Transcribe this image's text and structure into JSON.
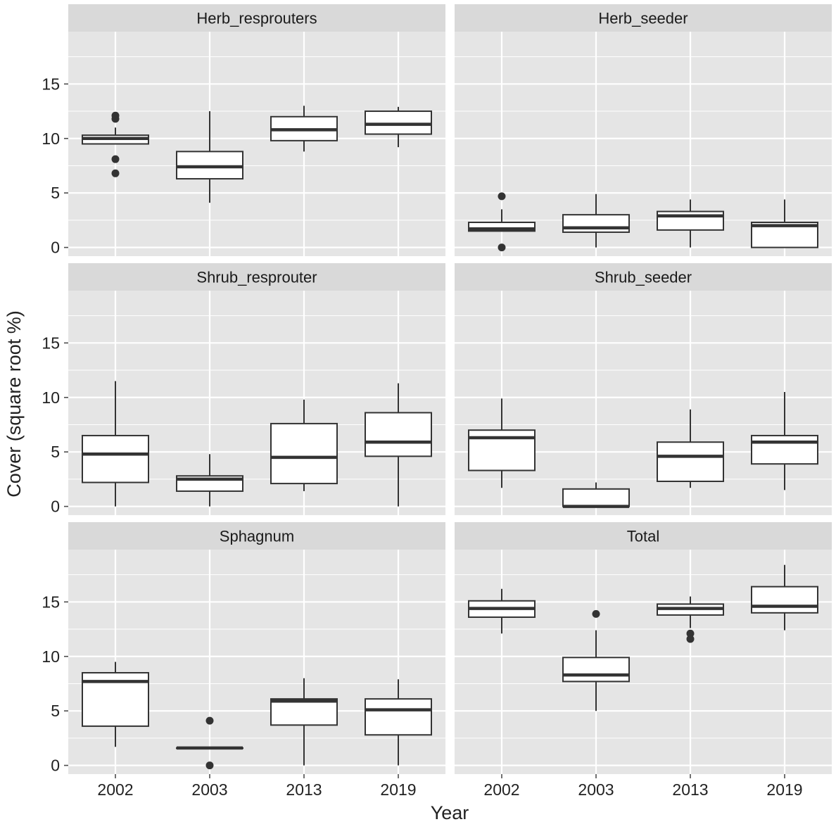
{
  "chart_data": {
    "type": "box",
    "xlabel": "Year",
    "ylabel": "Cover (square root %)",
    "categories": [
      "2002",
      "2003",
      "2013",
      "2019"
    ],
    "yticks": [
      0,
      5,
      10,
      15
    ],
    "ylim": [
      -0.8,
      19.8
    ],
    "grid": true,
    "facets": [
      {
        "title": "Herb_resprouters",
        "boxes": [
          {
            "x": "2002",
            "min": 9.5,
            "q1": 9.5,
            "median": 10.0,
            "q3": 10.3,
            "max": 11.0,
            "outliers": [
              12.1,
              11.8,
              8.1,
              6.8
            ]
          },
          {
            "x": "2003",
            "min": 4.1,
            "q1": 6.3,
            "median": 7.4,
            "q3": 8.8,
            "max": 12.5,
            "outliers": []
          },
          {
            "x": "2013",
            "min": 8.8,
            "q1": 9.8,
            "median": 10.8,
            "q3": 12.0,
            "max": 13.0,
            "outliers": []
          },
          {
            "x": "2019",
            "min": 9.2,
            "q1": 10.4,
            "median": 11.3,
            "q3": 12.5,
            "max": 12.9,
            "outliers": []
          }
        ]
      },
      {
        "title": "Herb_seeder",
        "boxes": [
          {
            "x": "2002",
            "min": 1.5,
            "q1": 1.5,
            "median": 1.7,
            "q3": 2.3,
            "max": 3.5,
            "outliers": [
              4.7,
              0.0
            ]
          },
          {
            "x": "2003",
            "min": 0.0,
            "q1": 1.4,
            "median": 1.8,
            "q3": 3.0,
            "max": 4.9,
            "outliers": []
          },
          {
            "x": "2013",
            "min": 0.0,
            "q1": 1.6,
            "median": 2.9,
            "q3": 3.3,
            "max": 4.4,
            "outliers": []
          },
          {
            "x": "2019",
            "min": 0.0,
            "q1": 0.0,
            "median": 2.0,
            "q3": 2.3,
            "max": 4.4,
            "outliers": []
          }
        ]
      },
      {
        "title": "Shrub_resprouter",
        "boxes": [
          {
            "x": "2002",
            "min": 0.0,
            "q1": 2.2,
            "median": 4.8,
            "q3": 6.5,
            "max": 11.5,
            "outliers": []
          },
          {
            "x": "2003",
            "min": 0.0,
            "q1": 1.4,
            "median": 2.5,
            "q3": 2.8,
            "max": 4.8,
            "outliers": []
          },
          {
            "x": "2013",
            "min": 1.4,
            "q1": 2.1,
            "median": 4.5,
            "q3": 7.6,
            "max": 9.8,
            "outliers": []
          },
          {
            "x": "2019",
            "min": 0.0,
            "q1": 4.6,
            "median": 5.9,
            "q3": 8.6,
            "max": 11.3,
            "outliers": []
          }
        ]
      },
      {
        "title": "Shrub_seeder",
        "boxes": [
          {
            "x": "2002",
            "min": 1.7,
            "q1": 3.3,
            "median": 6.3,
            "q3": 7.0,
            "max": 9.9,
            "outliers": []
          },
          {
            "x": "2003",
            "min": 0.0,
            "q1": 0.0,
            "median": 0.0,
            "q3": 1.6,
            "max": 2.2,
            "outliers": []
          },
          {
            "x": "2013",
            "min": 1.7,
            "q1": 2.3,
            "median": 4.6,
            "q3": 5.9,
            "max": 8.9,
            "outliers": []
          },
          {
            "x": "2019",
            "min": 1.5,
            "q1": 3.9,
            "median": 5.9,
            "q3": 6.5,
            "max": 10.5,
            "outliers": []
          }
        ]
      },
      {
        "title": "Sphagnum",
        "boxes": [
          {
            "x": "2002",
            "min": 1.7,
            "q1": 3.6,
            "median": 7.7,
            "q3": 8.5,
            "max": 9.5,
            "outliers": []
          },
          {
            "x": "2003",
            "min": 1.6,
            "q1": 1.6,
            "median": 1.6,
            "q3": 1.6,
            "max": 1.6,
            "outliers": [
              4.1,
              0.0
            ]
          },
          {
            "x": "2013",
            "min": 0.0,
            "q1": 3.7,
            "median": 5.9,
            "q3": 6.1,
            "max": 8.0,
            "outliers": []
          },
          {
            "x": "2019",
            "min": 0.0,
            "q1": 2.8,
            "median": 5.1,
            "q3": 6.1,
            "max": 7.9,
            "outliers": []
          }
        ]
      },
      {
        "title": "Total",
        "boxes": [
          {
            "x": "2002",
            "min": 12.1,
            "q1": 13.6,
            "median": 14.4,
            "q3": 15.1,
            "max": 16.2,
            "outliers": []
          },
          {
            "x": "2003",
            "min": 5.0,
            "q1": 7.7,
            "median": 8.3,
            "q3": 9.9,
            "max": 12.4,
            "outliers": [
              13.9
            ]
          },
          {
            "x": "2013",
            "min": 12.6,
            "q1": 13.8,
            "median": 14.4,
            "q3": 14.8,
            "max": 15.5,
            "outliers": [
              12.1,
              11.6
            ]
          },
          {
            "x": "2019",
            "min": 12.4,
            "q1": 14.0,
            "median": 14.6,
            "q3": 16.4,
            "max": 18.4,
            "outliers": []
          }
        ]
      }
    ]
  },
  "colors": {
    "panel_bg": "#e5e5e5",
    "strip_bg": "#d9d9d9",
    "grid": "#ffffff",
    "box_fill": "#ffffff",
    "box_stroke": "#333333",
    "outlier": "#333333",
    "axis_text": "#222222",
    "tick": "#4d4d4d"
  }
}
